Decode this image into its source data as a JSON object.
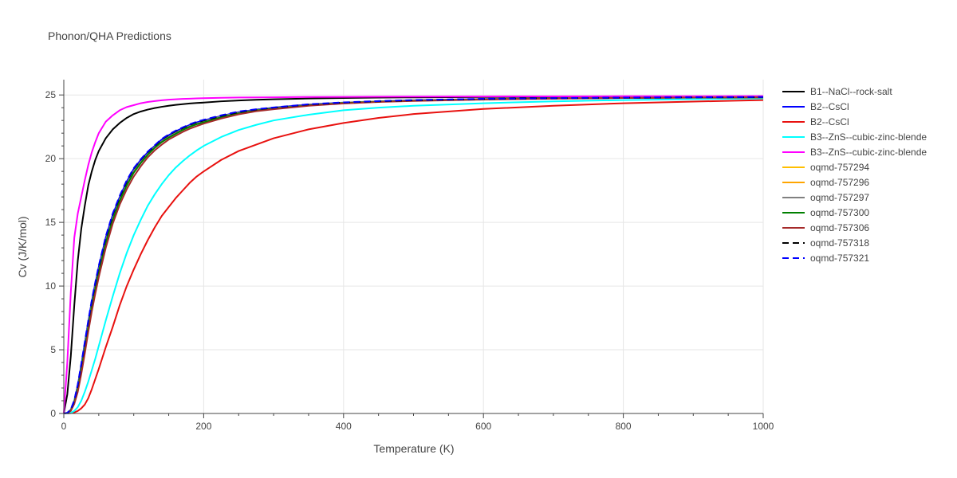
{
  "chart_data": {
    "type": "line",
    "title": "Phonon/QHA Predictions",
    "xlabel": "Temperature (K)",
    "ylabel": "Cv (J/K/mol)",
    "xlim": [
      0,
      1000
    ],
    "ylim": [
      0,
      26.2
    ],
    "x_ticks": [
      0,
      200,
      400,
      600,
      800,
      1000
    ],
    "y_ticks": [
      0,
      5,
      10,
      15,
      20,
      25
    ],
    "x_tick_labels": [
      "0",
      "200",
      "400",
      "600",
      "800",
      "1000"
    ],
    "y_tick_labels": [
      "0",
      "5",
      "10",
      "15",
      "20",
      "25"
    ],
    "grid": true,
    "legend_position": "right",
    "x": [
      0,
      5,
      10,
      15,
      20,
      25,
      30,
      35,
      40,
      45,
      50,
      60,
      70,
      80,
      90,
      100,
      110,
      120,
      130,
      140,
      150,
      160,
      170,
      180,
      190,
      200,
      225,
      250,
      275,
      300,
      350,
      400,
      450,
      500,
      600,
      700,
      800,
      900,
      1000
    ],
    "series": [
      {
        "name": "B1--NaCl--rock-salt",
        "color": "#000000",
        "dash": "solid",
        "values": [
          0,
          1.5,
          4.5,
          8.5,
          12.0,
          14.5,
          16.3,
          17.9,
          19.0,
          19.9,
          20.6,
          21.6,
          22.3,
          22.8,
          23.2,
          23.5,
          23.7,
          23.85,
          23.97,
          24.07,
          24.15,
          24.22,
          24.28,
          24.33,
          24.37,
          24.4,
          24.5,
          24.57,
          24.62,
          24.66,
          24.72,
          24.76,
          24.79,
          24.81,
          24.84,
          24.86,
          24.87,
          24.88,
          24.89
        ]
      },
      {
        "name": "B2--CsCl",
        "color": "#0000ff",
        "dash": "solid",
        "values": [
          0,
          0.05,
          0.3,
          1.0,
          2.2,
          3.8,
          5.5,
          7.2,
          8.8,
          10.2,
          11.5,
          13.8,
          15.6,
          17.0,
          18.2,
          19.2,
          19.9,
          20.5,
          21.0,
          21.5,
          21.85,
          22.15,
          22.4,
          22.65,
          22.85,
          23.0,
          23.35,
          23.65,
          23.85,
          24.0,
          24.25,
          24.4,
          24.5,
          24.58,
          24.68,
          24.74,
          24.78,
          24.81,
          24.83
        ]
      },
      {
        "name": "B2--CsCl",
        "color": "#e8110f",
        "dash": "solid",
        "values": [
          0,
          0,
          0.02,
          0.08,
          0.2,
          0.4,
          0.7,
          1.2,
          1.9,
          2.7,
          3.5,
          5.2,
          6.8,
          8.5,
          10.0,
          11.3,
          12.5,
          13.6,
          14.6,
          15.5,
          16.2,
          16.9,
          17.5,
          18.1,
          18.6,
          19.0,
          19.9,
          20.6,
          21.1,
          21.6,
          22.3,
          22.8,
          23.2,
          23.5,
          23.9,
          24.15,
          24.35,
          24.48,
          24.6
        ]
      },
      {
        "name": "B3--ZnS--cubic-zinc-blende",
        "color": "#00ffff",
        "dash": "solid",
        "values": [
          0,
          0.01,
          0.05,
          0.2,
          0.5,
          1.0,
          1.7,
          2.5,
          3.4,
          4.3,
          5.3,
          7.3,
          9.2,
          11.0,
          12.6,
          14.0,
          15.2,
          16.3,
          17.2,
          18.0,
          18.7,
          19.3,
          19.8,
          20.25,
          20.65,
          21.0,
          21.7,
          22.25,
          22.65,
          23.0,
          23.45,
          23.8,
          24.0,
          24.15,
          24.35,
          24.5,
          24.6,
          24.67,
          24.72
        ]
      },
      {
        "name": "B3--ZnS--cubic-zinc-blende",
        "color": "#ff00ff",
        "dash": "solid",
        "values": [
          0,
          4.0,
          9.5,
          13.8,
          15.7,
          17.0,
          18.3,
          19.5,
          20.5,
          21.3,
          22.0,
          22.9,
          23.4,
          23.8,
          24.05,
          24.2,
          24.35,
          24.45,
          24.52,
          24.58,
          24.63,
          24.66,
          24.69,
          24.71,
          24.73,
          24.75,
          24.78,
          24.8,
          24.81,
          24.82,
          24.84,
          24.85,
          24.86,
          24.87,
          24.88,
          24.89,
          24.9,
          24.9,
          24.91
        ]
      },
      {
        "name": "oqmd-757294",
        "color": "#ffbf00",
        "dash": "solid",
        "values": [
          0,
          0.04,
          0.25,
          0.9,
          2.0,
          3.5,
          5.2,
          6.9,
          8.5,
          9.9,
          11.2,
          13.5,
          15.3,
          16.8,
          18.0,
          19.0,
          19.75,
          20.35,
          20.9,
          21.35,
          21.7,
          22.0,
          22.3,
          22.55,
          22.75,
          22.9,
          23.3,
          23.6,
          23.8,
          23.95,
          24.2,
          24.38,
          24.48,
          24.56,
          24.66,
          24.73,
          24.77,
          24.8,
          24.82
        ]
      },
      {
        "name": "oqmd-757296",
        "color": "#ffa500",
        "dash": "solid",
        "values": [
          0,
          0.04,
          0.25,
          0.9,
          2.0,
          3.5,
          5.2,
          6.9,
          8.5,
          9.9,
          11.2,
          13.5,
          15.3,
          16.8,
          18.0,
          19.0,
          19.75,
          20.35,
          20.9,
          21.35,
          21.7,
          22.0,
          22.3,
          22.55,
          22.75,
          22.9,
          23.3,
          23.6,
          23.8,
          23.95,
          24.2,
          24.38,
          24.48,
          24.56,
          24.66,
          24.73,
          24.77,
          24.8,
          24.82
        ]
      },
      {
        "name": "oqmd-757297",
        "color": "#808080",
        "dash": "solid",
        "values": [
          0,
          0.04,
          0.25,
          0.9,
          2.0,
          3.5,
          5.2,
          6.9,
          8.5,
          9.9,
          11.2,
          13.5,
          15.3,
          16.8,
          18.0,
          19.0,
          19.75,
          20.35,
          20.9,
          21.35,
          21.7,
          22.0,
          22.3,
          22.55,
          22.75,
          22.9,
          23.3,
          23.6,
          23.8,
          23.95,
          24.2,
          24.38,
          24.48,
          24.56,
          24.66,
          24.73,
          24.77,
          24.8,
          24.82
        ]
      },
      {
        "name": "oqmd-757300",
        "color": "#008000",
        "dash": "solid",
        "values": [
          0,
          0.04,
          0.24,
          0.88,
          1.95,
          3.45,
          5.1,
          6.8,
          8.4,
          9.8,
          11.1,
          13.4,
          15.2,
          16.7,
          17.9,
          18.9,
          19.65,
          20.3,
          20.85,
          21.3,
          21.65,
          21.95,
          22.25,
          22.5,
          22.7,
          22.85,
          23.25,
          23.55,
          23.78,
          23.93,
          24.18,
          24.36,
          24.47,
          24.55,
          24.65,
          24.72,
          24.76,
          24.79,
          24.81
        ]
      },
      {
        "name": "oqmd-757306",
        "color": "#a52a2a",
        "dash": "solid",
        "values": [
          0,
          0.03,
          0.2,
          0.75,
          1.7,
          3.1,
          4.7,
          6.4,
          8.0,
          9.4,
          10.7,
          13.0,
          14.9,
          16.4,
          17.6,
          18.6,
          19.4,
          20.1,
          20.65,
          21.1,
          21.5,
          21.8,
          22.1,
          22.35,
          22.55,
          22.75,
          23.15,
          23.48,
          23.72,
          23.88,
          24.15,
          24.33,
          24.45,
          24.53,
          24.64,
          24.71,
          24.76,
          24.79,
          24.81
        ]
      },
      {
        "name": "oqmd-757318",
        "color": "#000000",
        "dash": "dash",
        "values": [
          0,
          0.05,
          0.3,
          1.0,
          2.2,
          3.8,
          5.5,
          7.2,
          8.8,
          10.2,
          11.5,
          13.8,
          15.6,
          17.0,
          18.2,
          19.2,
          19.9,
          20.5,
          21.0,
          21.5,
          21.85,
          22.15,
          22.4,
          22.65,
          22.85,
          23.0,
          23.35,
          23.65,
          23.85,
          24.0,
          24.25,
          24.4,
          24.5,
          24.58,
          24.68,
          24.74,
          24.78,
          24.81,
          24.83
        ]
      },
      {
        "name": "oqmd-757321",
        "color": "#0000ff",
        "dash": "dash",
        "values": [
          0,
          0.05,
          0.32,
          1.05,
          2.3,
          3.9,
          5.6,
          7.3,
          8.9,
          10.3,
          11.6,
          13.9,
          15.7,
          17.1,
          18.3,
          19.25,
          19.95,
          20.55,
          21.05,
          21.55,
          21.9,
          22.2,
          22.45,
          22.7,
          22.9,
          23.05,
          23.4,
          23.7,
          23.88,
          24.02,
          24.27,
          24.42,
          24.52,
          24.6,
          24.7,
          24.75,
          24.79,
          24.82,
          24.84
        ]
      }
    ]
  }
}
